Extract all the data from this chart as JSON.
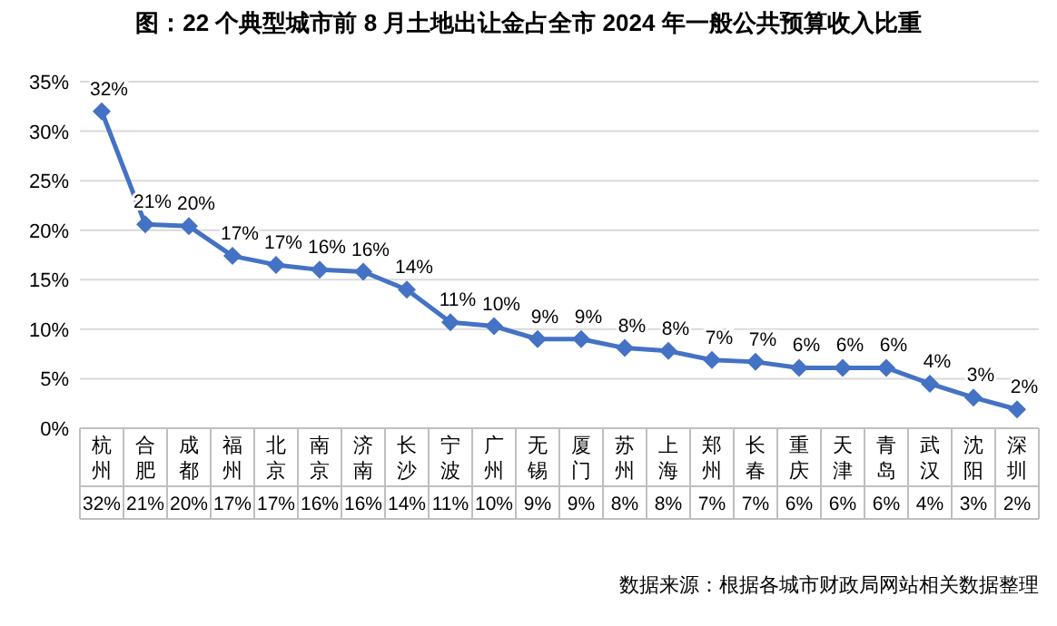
{
  "chart_data": {
    "type": "line",
    "title": "图：22 个典型城市前 8 月土地出让金占全市 2024 年一般公共预算收入比重",
    "categories": [
      "杭州",
      "合肥",
      "成都",
      "福州",
      "北京",
      "南京",
      "济南",
      "长沙",
      "宁波",
      "广州",
      "无锡",
      "厦门",
      "苏州",
      "上海",
      "郑州",
      "长春",
      "重庆",
      "天津",
      "青岛",
      "武汉",
      "沈阳",
      "深圳"
    ],
    "values": [
      32,
      20.6,
      20.4,
      17.4,
      16.5,
      16,
      15.8,
      14,
      10.7,
      10.3,
      9,
      9,
      8.1,
      7.8,
      6.9,
      6.7,
      6.1,
      6.1,
      6.1,
      4.5,
      3.1,
      1.9
    ],
    "value_labels": [
      "32%",
      "21%",
      "20%",
      "17%",
      "17%",
      "16%",
      "16%",
      "14%",
      "11%",
      "10%",
      "9%",
      "9%",
      "8%",
      "8%",
      "7%",
      "7%",
      "6%",
      "6%",
      "6%",
      "4%",
      "3%",
      "2%"
    ],
    "color": "#4472c4",
    "marker": "diamond",
    "grid": "y",
    "ylim": [
      0,
      35
    ],
    "yticks": [
      {
        "value": 0,
        "label": "0%"
      },
      {
        "value": 5,
        "label": "5%"
      },
      {
        "value": 10,
        "label": "10%"
      },
      {
        "value": 15,
        "label": "15%"
      },
      {
        "value": 20,
        "label": "20%"
      },
      {
        "value": 25,
        "label": "25%"
      },
      {
        "value": 30,
        "label": "30%"
      },
      {
        "value": 35,
        "label": "35%"
      }
    ],
    "annotations": [
      "数据来源：根据各城市财政局网站相关数据整理"
    ]
  }
}
